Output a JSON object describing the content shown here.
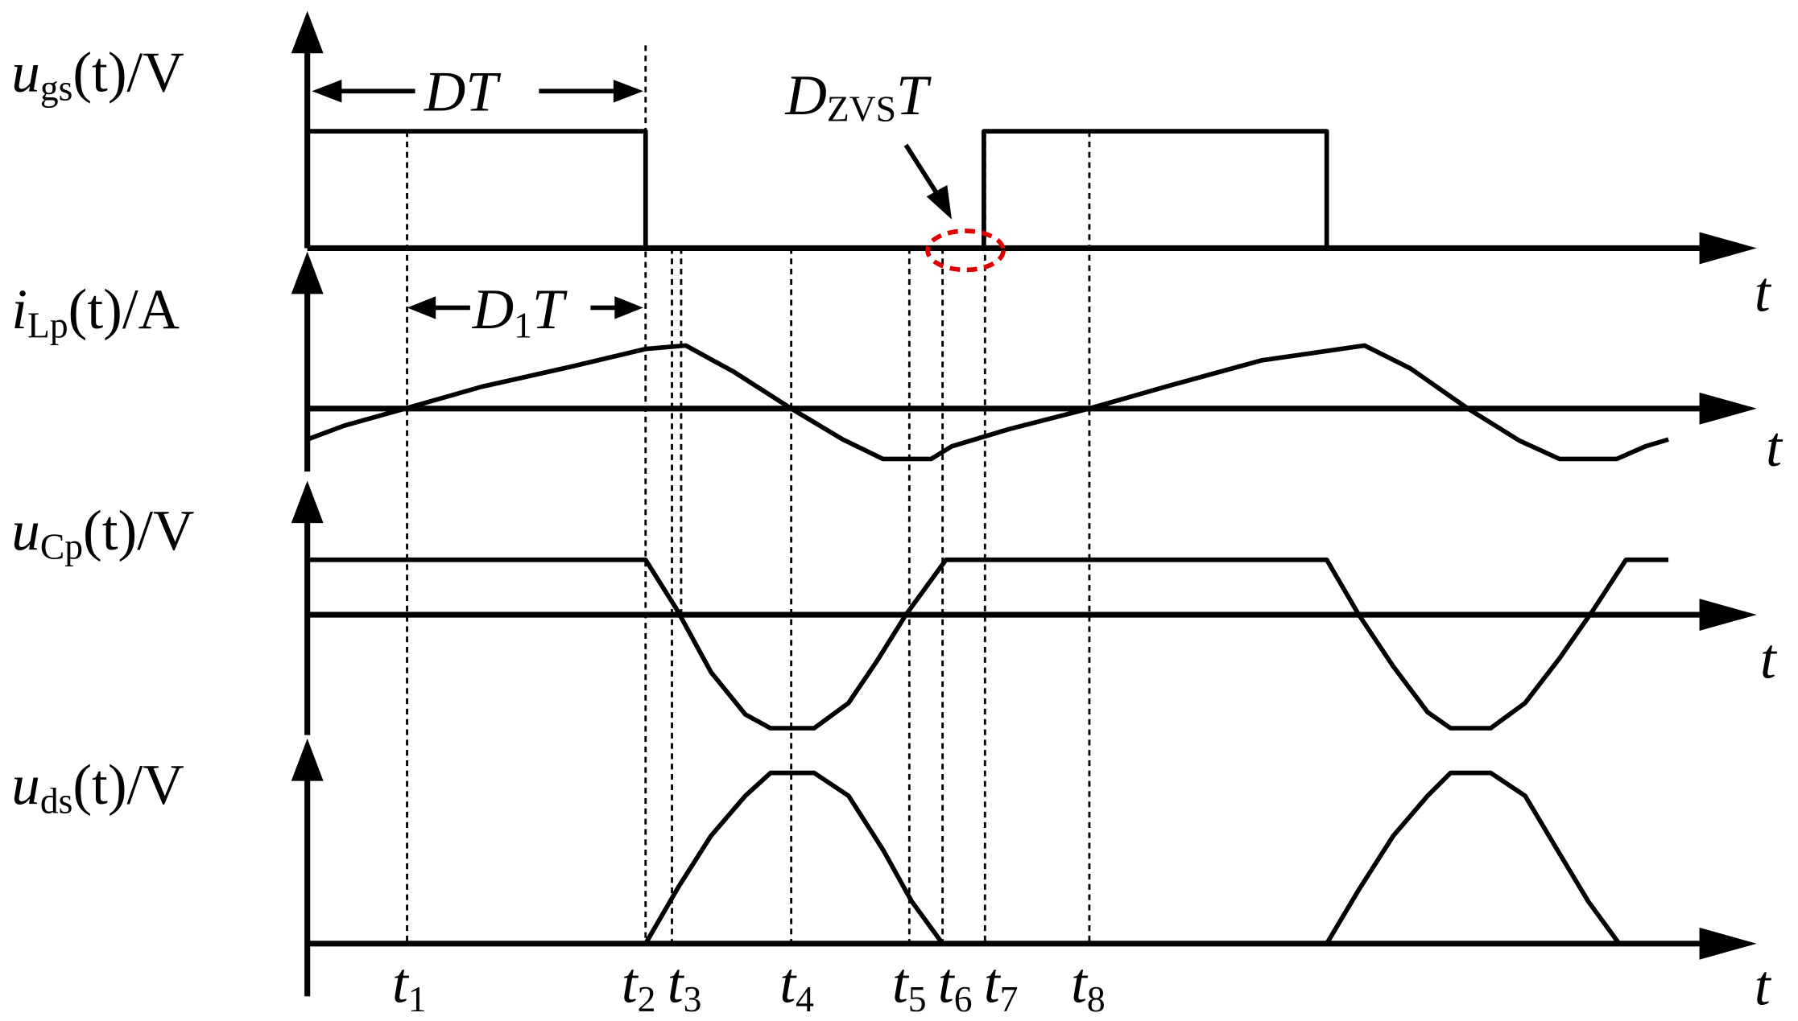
{
  "signals": [
    {
      "var": "u",
      "sub": "gs",
      "arg": "(t)/V",
      "axis": "t"
    },
    {
      "var": "i",
      "sub": "Lp",
      "arg": "(t)/A",
      "axis": "t"
    },
    {
      "var": "u",
      "sub": "Cp",
      "arg": "(t)/V",
      "axis": "t"
    },
    {
      "var": "u",
      "sub": "ds",
      "arg": "(t)/V",
      "axis": "t"
    }
  ],
  "time_labels": [
    {
      "var": "t",
      "sub": "1"
    },
    {
      "var": "t",
      "sub": "2"
    },
    {
      "var": "t",
      "sub": "3"
    },
    {
      "var": "t",
      "sub": "4"
    },
    {
      "var": "t",
      "sub": "5"
    },
    {
      "var": "t",
      "sub": "6"
    },
    {
      "var": "t",
      "sub": "7"
    },
    {
      "var": "t",
      "sub": "8"
    }
  ],
  "annotations": {
    "dt": "DT",
    "d1t": {
      "main": "D",
      "sub": "1",
      "rest": "T"
    },
    "dzvst": {
      "main": "D",
      "sub": "ZVS",
      "rest": "T"
    }
  }
}
